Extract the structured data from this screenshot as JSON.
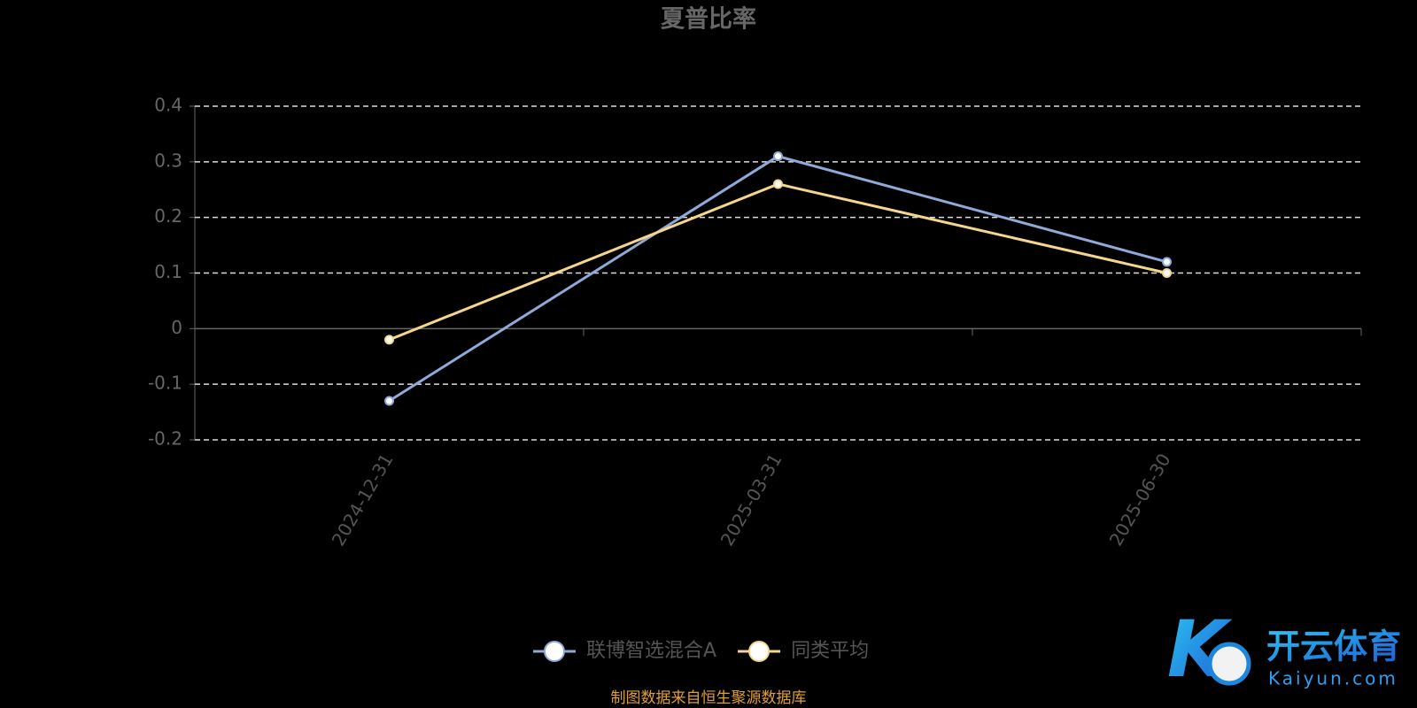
{
  "chart_data": {
    "type": "line",
    "title": "夏普比率",
    "categories": [
      "2024-12-31",
      "2025-03-31",
      "2025-06-30"
    ],
    "series": [
      {
        "name": "联博智选混合A",
        "color": "#8fa9d8",
        "values": [
          -0.13,
          0.31,
          0.12
        ]
      },
      {
        "name": "同类平均",
        "color": "#f7d58c",
        "values": [
          -0.02,
          0.26,
          0.1
        ]
      }
    ],
    "ylim": [
      -0.2,
      0.4
    ],
    "yticks": [
      -0.2,
      -0.1,
      0,
      0.1,
      0.2,
      0.3,
      0.4
    ],
    "grid": true,
    "legend": "bottom",
    "footer": "制图数据来自恒生聚源数据库"
  },
  "watermark": {
    "brand": "开云体育",
    "site": "Kaiyun.com"
  }
}
